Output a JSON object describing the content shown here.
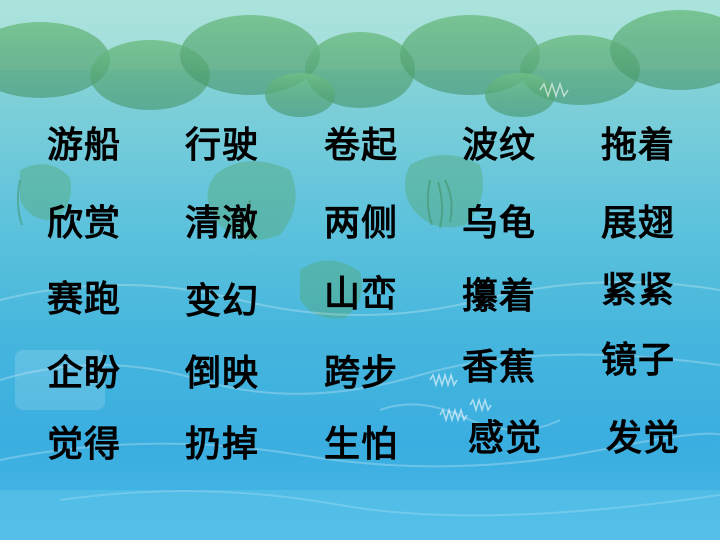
{
  "vocabulary": {
    "rows": [
      [
        "游船",
        "行驶",
        "卷起",
        "波纹",
        "拖着"
      ],
      [
        "欣赏",
        "清澈",
        "两侧",
        "乌龟",
        "展翅"
      ],
      [
        "赛跑",
        "变幻",
        "山峦",
        "攥着",
        "紧紧"
      ],
      [
        "企盼",
        "倒映",
        "跨步",
        "香蕉",
        "镜子"
      ],
      [
        "觉得",
        "扔掉",
        "生怕",
        "感觉",
        "发觉"
      ]
    ]
  },
  "colors": {
    "text": "#000000",
    "water_light": "#9fdfdc",
    "water_deep": "#3aaee0",
    "foliage": "#4f9e6a"
  }
}
